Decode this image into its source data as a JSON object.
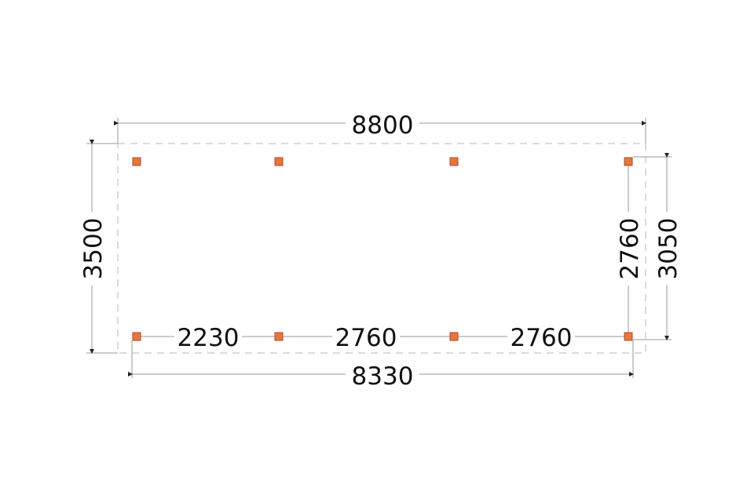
{
  "dimensions": {
    "overall_width": "8800",
    "overall_depth": "3500",
    "post_span_width": "8330",
    "post_span_depth": "2760",
    "side_depth": "3050",
    "bays": [
      "2230",
      "2760",
      "2760"
    ]
  },
  "colors": {
    "post": "#e8763c",
    "outline": "#cfcfcf",
    "dimension_line": "#9a9a9a"
  }
}
